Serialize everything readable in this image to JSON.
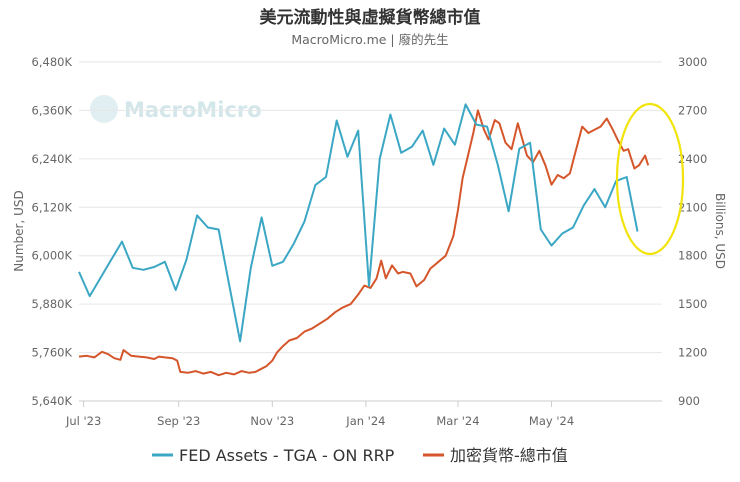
{
  "chart_data": {
    "type": "line",
    "title": "美元流動性與虛擬貨幣總市值",
    "subtitle": "MacroMicro.me | 廢的先生",
    "watermark": "MacroMicro",
    "y_left_label": "Number, USD",
    "y_right_label": "Billions, USD",
    "y_left_range": [
      5640,
      6480
    ],
    "y_left_ticks": [
      "6,480K",
      "6,360K",
      "6,240K",
      "6,120K",
      "6,000K",
      "5,880K",
      "5,760K",
      "5,640K"
    ],
    "y_left_tick_values": [
      6480,
      6360,
      6240,
      6120,
      6000,
      5880,
      5760,
      5640
    ],
    "y_right_range": [
      900,
      3000
    ],
    "y_right_ticks": [
      "3000",
      "2700",
      "2400",
      "2100",
      "1800",
      "1500",
      "1200",
      "900"
    ],
    "y_right_tick_values": [
      3000,
      2700,
      2400,
      2100,
      1800,
      1500,
      1200,
      900
    ],
    "x_range": [
      "2023-06-28",
      "2024-07-12"
    ],
    "x_ticks": [
      {
        "label": "Jul '23",
        "date": "2023-07-01"
      },
      {
        "label": "Sep '23",
        "date": "2023-09-01"
      },
      {
        "label": "Nov '23",
        "date": "2023-11-01"
      },
      {
        "label": "Jan '24",
        "date": "2024-01-01"
      },
      {
        "label": "Mar '24",
        "date": "2024-03-01"
      },
      {
        "label": "May '24",
        "date": "2024-05-01"
      }
    ],
    "grid": "horizontal",
    "legend_position": "bottom",
    "highlight": "yellow ellipse around June 2024 data",
    "series": [
      {
        "name": "FED Assets - TGA - ON RRP",
        "color": "#3ba7c4",
        "axis": "left",
        "points": [
          [
            "2023-06-28",
            5960
          ],
          [
            "2023-07-05",
            5900
          ],
          [
            "2023-07-12",
            5945
          ],
          [
            "2023-07-19",
            5990
          ],
          [
            "2023-07-26",
            6035
          ],
          [
            "2023-08-02",
            5970
          ],
          [
            "2023-08-09",
            5965
          ],
          [
            "2023-08-16",
            5972
          ],
          [
            "2023-08-23",
            5985
          ],
          [
            "2023-08-30",
            5915
          ],
          [
            "2023-09-06",
            5990
          ],
          [
            "2023-09-13",
            6100
          ],
          [
            "2023-09-20",
            6070
          ],
          [
            "2023-09-27",
            6065
          ],
          [
            "2023-10-04",
            5925
          ],
          [
            "2023-10-11",
            5788
          ],
          [
            "2023-10-18",
            5970
          ],
          [
            "2023-10-25",
            6095
          ],
          [
            "2023-11-01",
            5975
          ],
          [
            "2023-11-08",
            5985
          ],
          [
            "2023-11-15",
            6030
          ],
          [
            "2023-11-22",
            6085
          ],
          [
            "2023-11-29",
            6175
          ],
          [
            "2023-12-06",
            6195
          ],
          [
            "2023-12-13",
            6335
          ],
          [
            "2023-12-20",
            6245
          ],
          [
            "2023-12-27",
            6310
          ],
          [
            "2024-01-03",
            5925
          ],
          [
            "2024-01-10",
            6240
          ],
          [
            "2024-01-17",
            6350
          ],
          [
            "2024-01-24",
            6255
          ],
          [
            "2024-01-31",
            6270
          ],
          [
            "2024-02-07",
            6310
          ],
          [
            "2024-02-14",
            6225
          ],
          [
            "2024-02-21",
            6315
          ],
          [
            "2024-02-28",
            6275
          ],
          [
            "2024-03-06",
            6375
          ],
          [
            "2024-03-13",
            6325
          ],
          [
            "2024-03-20",
            6320
          ],
          [
            "2024-03-27",
            6225
          ],
          [
            "2024-04-03",
            6110
          ],
          [
            "2024-04-10",
            6265
          ],
          [
            "2024-04-17",
            6280
          ],
          [
            "2024-04-24",
            6065
          ],
          [
            "2024-05-01",
            6025
          ],
          [
            "2024-05-08",
            6055
          ],
          [
            "2024-05-15",
            6070
          ],
          [
            "2024-05-22",
            6125
          ],
          [
            "2024-05-29",
            6165
          ],
          [
            "2024-06-05",
            6120
          ],
          [
            "2024-06-12",
            6185
          ],
          [
            "2024-06-19",
            6195
          ],
          [
            "2024-06-26",
            6060
          ]
        ]
      },
      {
        "name": "加密貨幣-總市值",
        "color": "#d5562b",
        "axis": "right",
        "points": [
          [
            "2023-06-28",
            1175
          ],
          [
            "2023-07-03",
            1180
          ],
          [
            "2023-07-08",
            1170
          ],
          [
            "2023-07-13",
            1205
          ],
          [
            "2023-07-17",
            1190
          ],
          [
            "2023-07-21",
            1165
          ],
          [
            "2023-07-25",
            1155
          ],
          [
            "2023-07-27",
            1215
          ],
          [
            "2023-08-01",
            1180
          ],
          [
            "2023-08-06",
            1175
          ],
          [
            "2023-08-11",
            1170
          ],
          [
            "2023-08-16",
            1160
          ],
          [
            "2023-08-19",
            1175
          ],
          [
            "2023-08-23",
            1170
          ],
          [
            "2023-08-28",
            1165
          ],
          [
            "2023-08-31",
            1150
          ],
          [
            "2023-09-02",
            1080
          ],
          [
            "2023-09-07",
            1075
          ],
          [
            "2023-09-12",
            1085
          ],
          [
            "2023-09-17",
            1070
          ],
          [
            "2023-09-22",
            1080
          ],
          [
            "2023-09-27",
            1060
          ],
          [
            "2023-10-02",
            1075
          ],
          [
            "2023-10-07",
            1065
          ],
          [
            "2023-10-12",
            1085
          ],
          [
            "2023-10-17",
            1075
          ],
          [
            "2023-10-21",
            1080
          ],
          [
            "2023-10-25",
            1100
          ],
          [
            "2023-10-28",
            1115
          ],
          [
            "2023-11-01",
            1150
          ],
          [
            "2023-11-04",
            1200
          ],
          [
            "2023-11-08",
            1240
          ],
          [
            "2023-11-12",
            1275
          ],
          [
            "2023-11-17",
            1290
          ],
          [
            "2023-11-22",
            1330
          ],
          [
            "2023-11-27",
            1350
          ],
          [
            "2023-12-02",
            1380
          ],
          [
            "2023-12-07",
            1410
          ],
          [
            "2023-12-12",
            1450
          ],
          [
            "2023-12-17",
            1480
          ],
          [
            "2023-12-22",
            1500
          ],
          [
            "2023-12-27",
            1560
          ],
          [
            "2023-12-31",
            1615
          ],
          [
            "2024-01-04",
            1600
          ],
          [
            "2024-01-08",
            1660
          ],
          [
            "2024-01-11",
            1770
          ],
          [
            "2024-01-14",
            1660
          ],
          [
            "2024-01-18",
            1740
          ],
          [
            "2024-01-22",
            1690
          ],
          [
            "2024-01-25",
            1700
          ],
          [
            "2024-01-30",
            1690
          ],
          [
            "2024-02-03",
            1610
          ],
          [
            "2024-02-08",
            1650
          ],
          [
            "2024-02-12",
            1720
          ],
          [
            "2024-02-17",
            1760
          ],
          [
            "2024-02-22",
            1800
          ],
          [
            "2024-02-27",
            1920
          ],
          [
            "2024-03-01",
            2080
          ],
          [
            "2024-03-04",
            2280
          ],
          [
            "2024-03-07",
            2400
          ],
          [
            "2024-03-11",
            2560
          ],
          [
            "2024-03-14",
            2700
          ],
          [
            "2024-03-18",
            2580
          ],
          [
            "2024-03-21",
            2520
          ],
          [
            "2024-03-25",
            2640
          ],
          [
            "2024-03-28",
            2620
          ],
          [
            "2024-04-01",
            2500
          ],
          [
            "2024-04-05",
            2460
          ],
          [
            "2024-04-09",
            2620
          ],
          [
            "2024-04-12",
            2520
          ],
          [
            "2024-04-15",
            2420
          ],
          [
            "2024-04-19",
            2380
          ],
          [
            "2024-04-23",
            2450
          ],
          [
            "2024-04-27",
            2360
          ],
          [
            "2024-05-01",
            2240
          ],
          [
            "2024-05-05",
            2300
          ],
          [
            "2024-05-09",
            2280
          ],
          [
            "2024-05-13",
            2310
          ],
          [
            "2024-05-16",
            2420
          ],
          [
            "2024-05-21",
            2600
          ],
          [
            "2024-05-25",
            2560
          ],
          [
            "2024-05-29",
            2580
          ],
          [
            "2024-06-02",
            2600
          ],
          [
            "2024-06-06",
            2650
          ],
          [
            "2024-06-10",
            2580
          ],
          [
            "2024-06-13",
            2520
          ],
          [
            "2024-06-17",
            2450
          ],
          [
            "2024-06-20",
            2460
          ],
          [
            "2024-06-24",
            2340
          ],
          [
            "2024-06-27",
            2360
          ],
          [
            "2024-07-01",
            2420
          ],
          [
            "2024-07-03",
            2360
          ]
        ]
      }
    ]
  }
}
